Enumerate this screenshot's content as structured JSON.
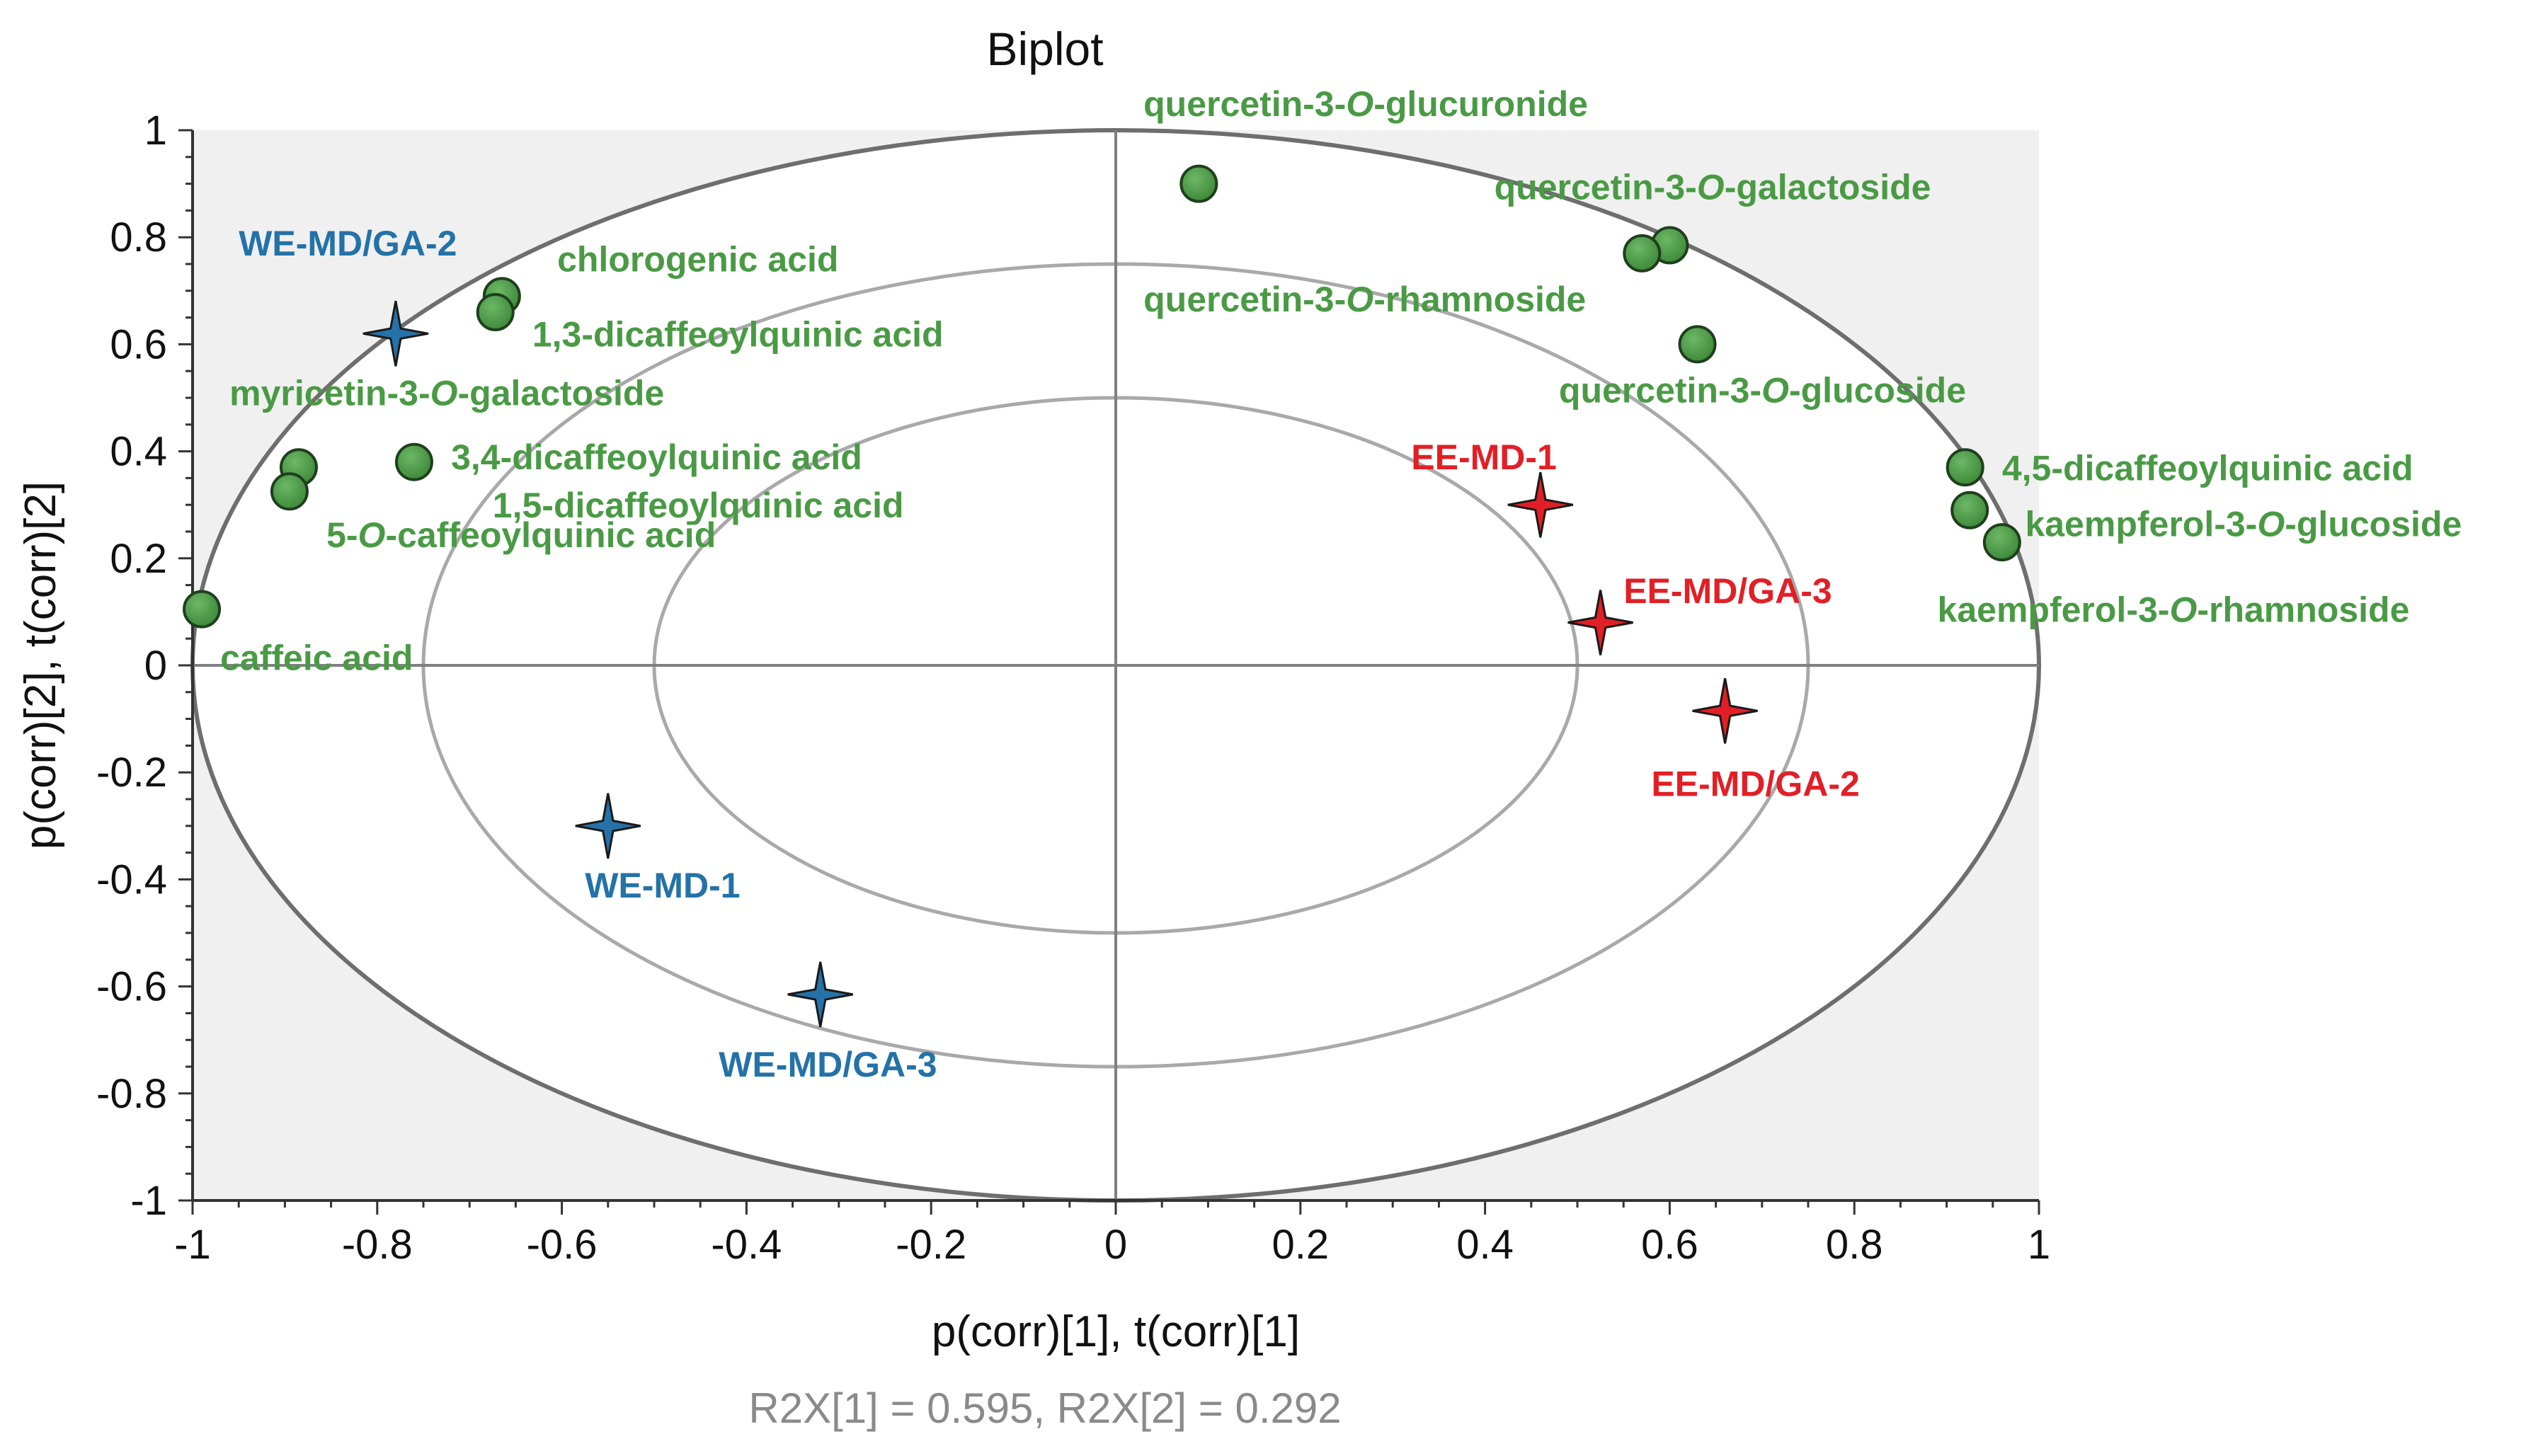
{
  "chart_data": {
    "type": "scatter",
    "title": "Biplot",
    "xlabel": "p(corr)[1], t(corr)[1]",
    "ylabel": "p(corr)[2], t(corr)[2]",
    "footer": "R2X[1] = 0.595, R2X[2] = 0.292",
    "xlim": [
      -1,
      1
    ],
    "ylim": [
      -1,
      1
    ],
    "xticks": [
      "-1",
      "-0.8",
      "-0.6",
      "-0.4",
      "-0.2",
      "0",
      "0.2",
      "0.4",
      "0.6",
      "0.8",
      "1"
    ],
    "yticks": [
      "1",
      "0.8",
      "0.6",
      "0.4",
      "0.2",
      "0",
      "-0.2",
      "-0.4",
      "-0.6",
      "-0.8",
      "-1"
    ],
    "grid": false,
    "ellipse_radii": [
      1.0,
      0.75,
      0.5
    ],
    "colors": {
      "variables": "#4a9a45",
      "water_extract": "#2472a8",
      "ethanol_extract": "#e21f26",
      "ellipse_outer": "#6e6e6e",
      "ellipse_inner": "#a9a9a9",
      "shading": "#f0f0f0"
    },
    "variables": [
      {
        "label": "quercetin-3-O-glucuronide",
        "x": 0.09,
        "y": 0.9
      },
      {
        "label": "quercetin-3-O-galactoside",
        "x": 0.6,
        "y": 0.785
      },
      {
        "label": "quercetin-3-O-rhamnoside",
        "x": 0.57,
        "y": 0.77
      },
      {
        "label": "quercetin-3-O-glucoside",
        "x": 0.63,
        "y": 0.6
      },
      {
        "label": "chlorogenic acid",
        "x": -0.665,
        "y": 0.69
      },
      {
        "label": "1,3-dicaffeoylquinic acid",
        "x": -0.672,
        "y": 0.66
      },
      {
        "label": "myricetin-3-O-galactoside",
        "x": -0.78,
        "y": 0.62,
        "point": false
      },
      {
        "label": "3,4-dicaffeoylquinic acid",
        "x": -0.76,
        "y": 0.38
      },
      {
        "label": "1,5-dicaffeoylquinic acid",
        "x": -0.885,
        "y": 0.37
      },
      {
        "label": "5-O-caffeoylquinic acid",
        "x": -0.895,
        "y": 0.325
      },
      {
        "label": "caffeic acid",
        "x": -0.99,
        "y": 0.105
      },
      {
        "label": "4,5-dicaffeoylquinic acid",
        "x": 0.92,
        "y": 0.37
      },
      {
        "label": "kaempferol-3-O-glucoside",
        "x": 0.925,
        "y": 0.29
      },
      {
        "label": "kaempferol-3-O-rhamnoside",
        "x": 0.96,
        "y": 0.23
      }
    ],
    "observations": [
      {
        "label": "WE-MD/GA-2",
        "x": -0.78,
        "y": 0.62,
        "group": "water"
      },
      {
        "label": "WE-MD-1",
        "x": -0.55,
        "y": -0.3,
        "group": "water"
      },
      {
        "label": "WE-MD/GA-3",
        "x": -0.32,
        "y": -0.615,
        "group": "water"
      },
      {
        "label": "EE-MD-1",
        "x": 0.46,
        "y": 0.3,
        "group": "ethanol"
      },
      {
        "label": "EE-MD/GA-3",
        "x": 0.525,
        "y": 0.08,
        "group": "ethanol"
      },
      {
        "label": "EE-MD/GA-2",
        "x": 0.66,
        "y": -0.085,
        "group": "ethanol"
      }
    ]
  }
}
